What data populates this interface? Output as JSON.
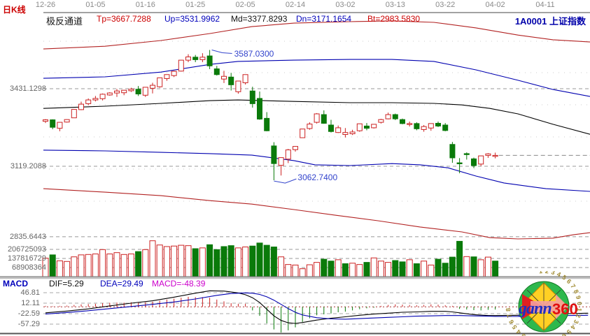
{
  "header": {
    "chart_type_label": "日K线",
    "channel_label": "极反通道",
    "params": [
      {
        "label": "Tp=3667.7288",
        "color": "#cc0000"
      },
      {
        "label": "Up=3531.9962",
        "color": "#0000bb"
      },
      {
        "label": "Md=3377.8293",
        "color": "#111111"
      },
      {
        "label": "Dn=3171.1654",
        "color": "#0000bb"
      },
      {
        "label": "Bt=2983.5830",
        "color": "#cc0000"
      }
    ],
    "symbol": "1A0001",
    "symbol_name": "上证指数"
  },
  "macd_panel": {
    "indicator_label": "MACD",
    "dif_label": "DIF=5.29",
    "dea_label": "DEA=29.49",
    "macd_label": "MACD=-48.39",
    "label_colors": [
      "#0000bb",
      "#111111",
      "#0000bb",
      "#cc00cc"
    ]
  },
  "logo": {
    "text_gann": "gann",
    "text_360": "360",
    "ring_digits": "1234567890"
  },
  "chart_data": {
    "type": "candlestick",
    "title": "上证指数 (1A0001) 日K线 极反通道",
    "x_axis": {
      "labels": [
        {
          "text": "12-26",
          "index": 0
        },
        {
          "text": "01-05",
          "index": 7
        },
        {
          "text": "01-16",
          "index": 14
        },
        {
          "text": "01-25",
          "index": 21
        },
        {
          "text": "02-05",
          "index": 28
        },
        {
          "text": "02-14",
          "index": 35
        },
        {
          "text": "03-02",
          "index": 42
        },
        {
          "text": "03-13",
          "index": 49
        },
        {
          "text": "03-22",
          "index": 56
        },
        {
          "text": "04-02",
          "index": 63
        },
        {
          "text": "04-11",
          "index": 70
        }
      ]
    },
    "y_axis": {
      "labels": [
        {
          "text": "3431.1298",
          "value": 3431.1298
        },
        {
          "text": "3119.2088",
          "value": 3119.2088
        },
        {
          "text": "2835.6443",
          "value": 2835.6443
        }
      ]
    },
    "volume_axis": {
      "labels": [
        {
          "text": "206725093",
          "value": 206725093
        },
        {
          "text": "137816729",
          "value": 137816729
        },
        {
          "text": "68908364",
          "value": 68908364
        }
      ]
    },
    "annotations": {
      "high": {
        "text": "3587.0300",
        "value": 3587.03,
        "candle_index": 23
      },
      "low": {
        "text": "3062.7400",
        "value": 3062.74,
        "candle_index": 32
      }
    },
    "last_price_line": {
      "price": 3163.2,
      "from_index": 63.5
    },
    "candles_ohlc": [
      [
        "12-26",
        3300,
        3309,
        3293,
        3306
      ],
      [
        "12-27",
        3306,
        3308,
        3268,
        3276
      ],
      [
        "12-28",
        3272,
        3297,
        3260,
        3296
      ],
      [
        "12-29",
        3297,
        3308,
        3295,
        3307
      ],
      [
        "01-02",
        3314,
        3349,
        3314,
        3348
      ],
      [
        "01-03",
        3347,
        3379,
        3345,
        3369
      ],
      [
        "01-04",
        3371,
        3392,
        3365,
        3386
      ],
      [
        "01-05",
        3386,
        3402,
        3380,
        3392
      ],
      [
        "01-08",
        3391,
        3412,
        3384,
        3409
      ],
      [
        "01-09",
        3406,
        3417,
        3403,
        3414
      ],
      [
        "01-10",
        3414,
        3430,
        3398,
        3422
      ],
      [
        "01-11",
        3415,
        3426,
        3405,
        3425
      ],
      [
        "01-12",
        3423,
        3435,
        3418,
        3429
      ],
      [
        "01-15",
        3429,
        3442,
        3402,
        3410
      ],
      [
        "01-16",
        3405,
        3438,
        3398,
        3437
      ],
      [
        "01-17",
        3433,
        3455,
        3412,
        3445
      ],
      [
        "01-18",
        3439,
        3476,
        3435,
        3475
      ],
      [
        "01-19",
        3472,
        3489,
        3463,
        3488
      ],
      [
        "01-22",
        3484,
        3503,
        3478,
        3501
      ],
      [
        "01-23",
        3502,
        3547,
        3500,
        3546
      ],
      [
        "01-24",
        3546,
        3570,
        3538,
        3559
      ],
      [
        "01-25",
        3558,
        3567,
        3538,
        3548
      ],
      [
        "01-26",
        3548,
        3574,
        3538,
        3558
      ],
      [
        "01-29",
        3563,
        3587,
        3510,
        3523
      ],
      [
        "01-30",
        3511,
        3523,
        3484,
        3488
      ],
      [
        "01-31",
        3470,
        3503,
        3454,
        3481
      ],
      [
        "02-01",
        3478,
        3495,
        3424,
        3447
      ],
      [
        "02-02",
        3419,
        3463,
        3411,
        3462
      ],
      [
        "02-05",
        3455,
        3488,
        3448,
        3488
      ],
      [
        "02-06",
        3422,
        3439,
        3355,
        3371
      ],
      [
        "02-07",
        3392,
        3420,
        3306,
        3309
      ],
      [
        "02-08",
        3312,
        3337,
        3260,
        3262
      ],
      [
        "02-09",
        3201,
        3216,
        3063,
        3130
      ],
      [
        "02-12",
        3123,
        3155,
        3082,
        3154
      ],
      [
        "02-13",
        3148,
        3189,
        3132,
        3185
      ],
      [
        "02-14",
        3186,
        3200,
        3178,
        3199
      ],
      [
        "02-22",
        3234,
        3269,
        3233,
        3269
      ],
      [
        "02-23",
        3271,
        3296,
        3266,
        3289
      ],
      [
        "02-26",
        3296,
        3333,
        3291,
        3330
      ],
      [
        "02-27",
        3327,
        3344,
        3290,
        3292
      ],
      [
        "02-28",
        3285,
        3306,
        3255,
        3259
      ],
      [
        "03-01",
        3255,
        3283,
        3253,
        3274
      ],
      [
        "03-02",
        3247,
        3273,
        3235,
        3255
      ],
      [
        "03-05",
        3250,
        3266,
        3245,
        3257
      ],
      [
        "03-06",
        3262,
        3291,
        3258,
        3290
      ],
      [
        "03-07",
        3281,
        3293,
        3264,
        3272
      ],
      [
        "03-08",
        3274,
        3289,
        3271,
        3288
      ],
      [
        "03-09",
        3296,
        3310,
        3291,
        3307
      ],
      [
        "03-12",
        3310,
        3335,
        3308,
        3327
      ],
      [
        "03-13",
        3327,
        3331,
        3305,
        3310
      ],
      [
        "03-14",
        3307,
        3311,
        3288,
        3291
      ],
      [
        "03-15",
        3288,
        3299,
        3279,
        3291
      ],
      [
        "03-16",
        3291,
        3296,
        3264,
        3270
      ],
      [
        "03-19",
        3267,
        3285,
        3258,
        3279
      ],
      [
        "03-20",
        3273,
        3291,
        3262,
        3291
      ],
      [
        "03-21",
        3292,
        3299,
        3277,
        3281
      ],
      [
        "03-22",
        3285,
        3293,
        3260,
        3263
      ],
      [
        "03-23",
        3207,
        3217,
        3133,
        3153
      ],
      [
        "03-26",
        3133,
        3152,
        3091,
        3130
      ],
      [
        "03-27",
        3170,
        3175,
        3146,
        3167
      ],
      [
        "03-28",
        3149,
        3154,
        3112,
        3122
      ],
      [
        "03-29",
        3128,
        3162,
        3120,
        3161
      ],
      [
        "03-30",
        3163,
        3172,
        3153,
        3169
      ],
      [
        "04-02",
        3160,
        3174,
        3151,
        3163
      ]
    ],
    "volumes_millions": [
      140,
      165,
      120,
      115,
      150,
      165,
      168,
      172,
      205,
      172,
      182,
      168,
      172,
      190,
      205,
      272,
      240,
      228,
      232,
      238,
      235,
      212,
      218,
      242,
      205,
      228,
      235,
      218,
      225,
      232,
      255,
      238,
      225,
      150,
      92,
      88,
      60,
      90,
      108,
      132,
      118,
      128,
      98,
      102,
      92,
      108,
      142,
      118,
      108,
      122,
      112,
      128,
      98,
      118,
      88,
      132,
      102,
      148,
      268,
      152,
      150,
      128,
      148,
      118
    ],
    "macd": {
      "scale": [
        {
          "text": "46.81",
          "value": 46.81
        },
        {
          "text": "12.11",
          "value": 12.11
        },
        {
          "text": "-22.59",
          "value": -22.59
        },
        {
          "text": "-57.29",
          "value": -57.29
        }
      ],
      "hist": [
        3,
        2,
        3,
        4,
        6,
        8,
        9,
        10,
        12,
        13,
        14,
        14,
        15,
        13,
        15,
        17,
        20,
        24,
        27,
        30,
        33,
        32,
        32,
        30,
        24,
        18,
        12,
        10,
        10,
        -12,
        -30,
        -55,
        -75,
        -85,
        -78,
        -68,
        -50,
        -38,
        -28,
        -25,
        -22,
        -18,
        -16,
        -12,
        -8,
        -5,
        -3,
        3,
        6,
        8,
        7,
        6,
        5,
        6,
        8,
        7,
        5,
        3,
        -7,
        -9,
        -11,
        -12,
        -10,
        -9
      ],
      "dif": [
        [
          0,
          -20
        ],
        [
          3,
          -14
        ],
        [
          6,
          -7
        ],
        [
          9,
          3
        ],
        [
          12,
          12
        ],
        [
          15,
          20
        ],
        [
          18,
          32
        ],
        [
          21,
          45
        ],
        [
          23,
          53
        ],
        [
          25,
          52
        ],
        [
          27,
          46
        ],
        [
          28,
          40
        ],
        [
          29,
          30
        ],
        [
          30,
          14
        ],
        [
          31,
          -8
        ],
        [
          32,
          -30
        ],
        [
          33,
          -45
        ],
        [
          34,
          -53
        ],
        [
          35,
          -55
        ],
        [
          36,
          -52
        ],
        [
          37,
          -48
        ],
        [
          38,
          -44
        ],
        [
          40,
          -38
        ],
        [
          42,
          -33
        ],
        [
          44,
          -28
        ],
        [
          46,
          -24
        ],
        [
          48,
          -21
        ],
        [
          50,
          -18
        ],
        [
          52,
          -17
        ],
        [
          54,
          -15
        ],
        [
          56,
          -15
        ],
        [
          57,
          -17
        ],
        [
          58,
          -20
        ],
        [
          60,
          -26
        ],
        [
          62,
          -29
        ],
        [
          63,
          -29
        ],
        [
          66,
          -28
        ],
        [
          70,
          -26
        ],
        [
          73,
          -23
        ],
        [
          76,
          -21
        ]
      ],
      "dea": [
        [
          0,
          -24
        ],
        [
          3,
          -19
        ],
        [
          6,
          -13
        ],
        [
          9,
          -6
        ],
        [
          12,
          1
        ],
        [
          15,
          8
        ],
        [
          18,
          16
        ],
        [
          21,
          26
        ],
        [
          24,
          38
        ],
        [
          26,
          44
        ],
        [
          28,
          46
        ],
        [
          29,
          45
        ],
        [
          30,
          41
        ],
        [
          31,
          33
        ],
        [
          32,
          22
        ],
        [
          33,
          8
        ],
        [
          34,
          -6
        ],
        [
          35,
          -18
        ],
        [
          36,
          -27
        ],
        [
          38,
          -36
        ],
        [
          40,
          -40
        ],
        [
          42,
          -41
        ],
        [
          44,
          -39
        ],
        [
          46,
          -37
        ],
        [
          48,
          -35
        ],
        [
          50,
          -33
        ],
        [
          52,
          -31
        ],
        [
          54,
          -30
        ],
        [
          56,
          -29
        ],
        [
          58,
          -29
        ],
        [
          60,
          -30
        ],
        [
          62,
          -31
        ],
        [
          63,
          -32
        ],
        [
          66,
          -32
        ],
        [
          70,
          -31
        ],
        [
          73,
          -29
        ],
        [
          76,
          -28
        ]
      ]
    },
    "channel_lines": {
      "tp": {
        "name": "Tp",
        "color": "#b22222",
        "points": [
          [
            62,
            3591
          ],
          [
            150,
            3602
          ],
          [
            230,
            3625
          ],
          [
            300,
            3653
          ],
          [
            360,
            3681
          ],
          [
            420,
            3695
          ],
          [
            500,
            3701
          ],
          [
            560,
            3704
          ],
          [
            620,
            3698
          ],
          [
            680,
            3676
          ],
          [
            740,
            3647
          ],
          [
            790,
            3628
          ],
          [
            843,
            3619
          ]
        ]
      },
      "up": {
        "name": "Up",
        "color": "#0000b0",
        "points": [
          [
            62,
            3473
          ],
          [
            150,
            3479
          ],
          [
            230,
            3498
          ],
          [
            300,
            3529
          ],
          [
            340,
            3541
          ],
          [
            420,
            3546
          ],
          [
            500,
            3549
          ],
          [
            560,
            3549
          ],
          [
            620,
            3541
          ],
          [
            680,
            3507
          ],
          [
            740,
            3465
          ],
          [
            790,
            3428
          ],
          [
            843,
            3400
          ]
        ]
      },
      "md": {
        "name": "Md",
        "color": "#000000",
        "points": [
          [
            62,
            3352
          ],
          [
            150,
            3361
          ],
          [
            230,
            3372
          ],
          [
            300,
            3383
          ],
          [
            340,
            3386
          ],
          [
            420,
            3380
          ],
          [
            500,
            3375
          ],
          [
            560,
            3375
          ],
          [
            620,
            3372
          ],
          [
            660,
            3366
          ],
          [
            700,
            3352
          ],
          [
            740,
            3330
          ],
          [
            790,
            3288
          ],
          [
            843,
            3248
          ]
        ]
      },
      "dn": {
        "name": "Dn",
        "color": "#0000b0",
        "points": [
          [
            62,
            3184
          ],
          [
            150,
            3181
          ],
          [
            230,
            3175
          ],
          [
            300,
            3170
          ],
          [
            360,
            3164
          ],
          [
            420,
            3142
          ],
          [
            450,
            3125
          ],
          [
            500,
            3122
          ],
          [
            560,
            3130
          ],
          [
            600,
            3125
          ],
          [
            640,
            3113
          ],
          [
            680,
            3080
          ],
          [
            720,
            3052
          ],
          [
            780,
            3029
          ],
          [
            843,
            3018
          ]
        ]
      },
      "bt": {
        "name": "Bt",
        "color": "#b22222",
        "points": [
          [
            62,
            3029
          ],
          [
            150,
            3015
          ],
          [
            230,
            3001
          ],
          [
            300,
            2981
          ],
          [
            360,
            2967
          ],
          [
            420,
            2945
          ],
          [
            480,
            2922
          ],
          [
            540,
            2900
          ],
          [
            600,
            2875
          ],
          [
            660,
            2855
          ],
          [
            700,
            2832
          ],
          [
            740,
            2827
          ],
          [
            790,
            2830
          ],
          [
            820,
            2844
          ],
          [
            843,
            2852
          ]
        ]
      }
    },
    "colors": {
      "up": "#cc2222",
      "down": "#0a7a0a",
      "grid_dash": "#999999",
      "dot_grid": "#cccccc",
      "zero_line": "#aa3333",
      "annotation": "#3344cc"
    },
    "grid": {
      "dot_rows_y": [
        59,
        104,
        150,
        196,
        242,
        288
      ]
    }
  }
}
